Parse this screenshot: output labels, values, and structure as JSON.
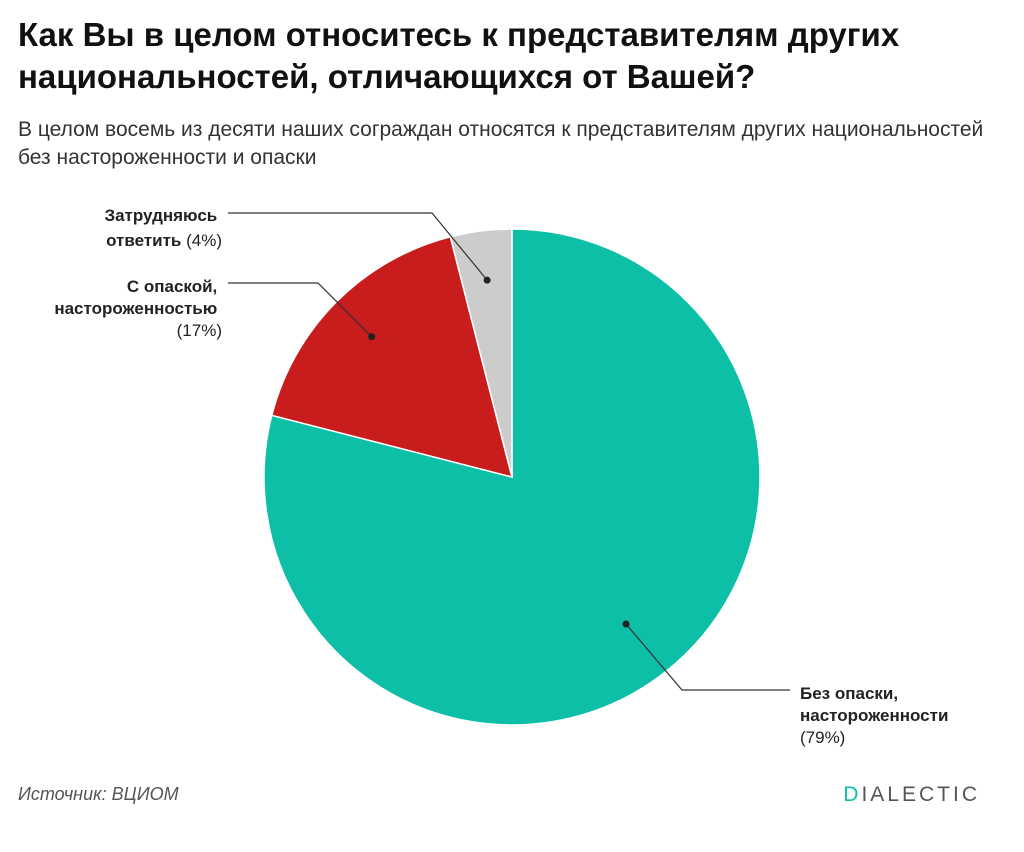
{
  "title": "Как Вы в целом относитесь к представителям других национальностей, отличающихся от Вашей?",
  "subtitle": "В целом восемь из десяти наших сограждан относятся к представителям других национальностей без настороженности и опаски",
  "source": "Источник: ВЦИОМ",
  "brand": {
    "first_letter": "D",
    "rest": "IALECTIC",
    "accent_color": "#0dbfa6"
  },
  "chart_data": {
    "type": "pie",
    "title": "Как Вы в целом относитесь к представителям других национальностей, отличающихся от Вашей?",
    "slices": [
      {
        "label_lines": [
          "Без опаски,",
          "настороженности"
        ],
        "value": 79,
        "value_label": "(79%)",
        "color": "#0dbfa6"
      },
      {
        "label_lines": [
          "С опаской,",
          "настороженностью"
        ],
        "value": 17,
        "value_label": "(17%)",
        "color": "#c91d1d"
      },
      {
        "label_lines": [
          "Затрудняюсь",
          "ответить"
        ],
        "value": 4,
        "value_label": "(4%)",
        "color": "#cccccc"
      }
    ]
  }
}
